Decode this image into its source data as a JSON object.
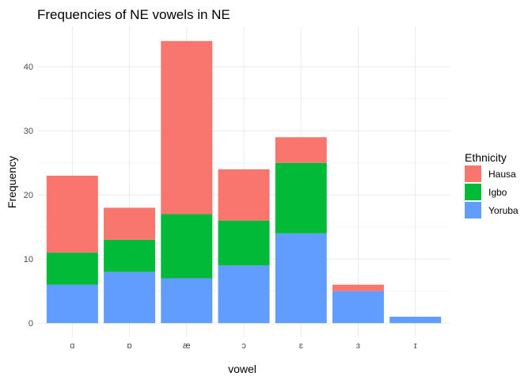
{
  "chart_data": {
    "type": "bar",
    "stacked": true,
    "title": "Frequencies of NE vowels in NE",
    "xlabel": "vowel",
    "ylabel": "Frequency",
    "categories": [
      "ɑ",
      "ɒ",
      "æ",
      "ɔ",
      "ɛ",
      "ɜ",
      "ɪ"
    ],
    "series": [
      {
        "name": "Hausa",
        "values": [
          12,
          5,
          27,
          8,
          4,
          1,
          0
        ],
        "color": "#F8766D"
      },
      {
        "name": "Igbo",
        "values": [
          5,
          5,
          10,
          7,
          11,
          0,
          0
        ],
        "color": "#00BA38"
      },
      {
        "name": "Yoruba",
        "values": [
          6,
          8,
          7,
          9,
          14,
          5,
          1
        ],
        "color": "#619CFF"
      }
    ],
    "stack_order_bottom_to_top": [
      "Yoruba",
      "Igbo",
      "Hausa"
    ],
    "ylim": [
      -2.2,
      46.2
    ],
    "yticks": [
      0,
      10,
      20,
      30,
      40
    ],
    "grid": true,
    "legend": {
      "title": "Ethnicity",
      "placement": "right",
      "entries": [
        "Hausa",
        "Igbo",
        "Yoruba"
      ]
    }
  }
}
